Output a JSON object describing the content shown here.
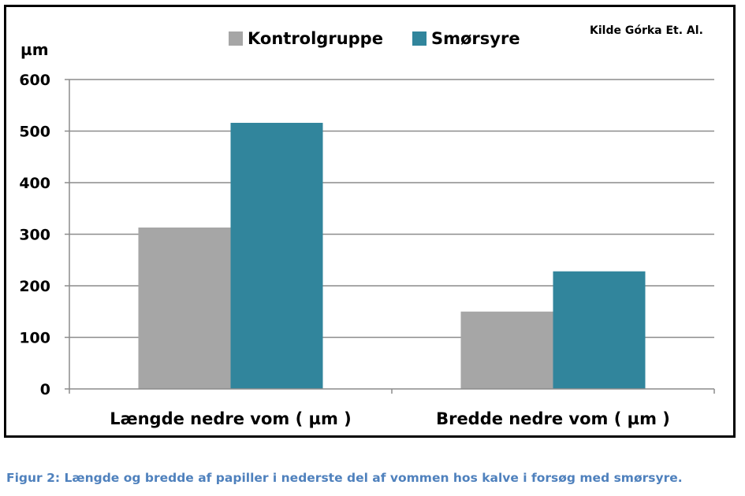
{
  "chart_data": {
    "type": "bar",
    "categories": [
      "Længde nedre vom ( µm )",
      "Bredde nedre vom ( µm )"
    ],
    "series": [
      {
        "name": "Kontrolgruppe",
        "values": [
          313,
          150
        ],
        "color": "#a6a6a6"
      },
      {
        "name": "Smørsyre",
        "values": [
          516,
          228
        ],
        "color": "#31859c"
      }
    ],
    "ylim": [
      0,
      600
    ],
    "yticks": [
      "0",
      "100",
      "200",
      "300",
      "400",
      "500",
      "600"
    ],
    "ylabel": "µm",
    "grid": true,
    "legend_position": "top"
  },
  "source_note": "Kilde Górka Et. Al.",
  "caption": "Figur 2: Længde og bredde af papiller i nederste del af vommen hos kalve i forsøg med smørsyre."
}
